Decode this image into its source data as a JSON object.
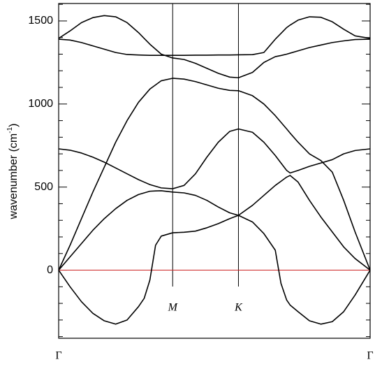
{
  "chart_data": {
    "type": "line",
    "ylabel": {
      "text": "wavenumber (cm",
      "superscript": "-1",
      "suffix": ")"
    },
    "x": [
      0,
      0.1,
      0.2,
      0.3,
      0.4,
      0.5,
      0.6,
      0.7,
      0.75,
      0.8,
      0.85,
      0.9,
      1.0,
      1.1,
      1.2,
      1.3,
      1.4,
      1.5,
      1.577,
      1.7,
      1.8,
      1.9,
      1.95,
      2.0,
      2.03,
      2.1,
      2.2,
      2.3,
      2.4,
      2.5,
      2.6,
      2.732
    ],
    "series": [
      {
        "color": "#000000",
        "values": [
          1395,
          1440,
          1490,
          1520,
          1532,
          1525,
          1490,
          1430,
          1395,
          1360,
          1330,
          1300,
          1277,
          1268,
          1245,
          1215,
          1185,
          1162,
          1158,
          1190,
          1250,
          1285,
          1292,
          1300,
          1306,
          1320,
          1340,
          1355,
          1370,
          1380,
          1388,
          1390
        ]
      },
      {
        "color": "#000000",
        "values": [
          1390,
          1385,
          1370,
          1350,
          1330,
          1310,
          1298,
          1295,
          1294,
          1293,
          1293,
          1293,
          1293,
          1293,
          1294,
          1294,
          1295,
          1295,
          1296,
          1297,
          1310,
          1390,
          1425,
          1460,
          1475,
          1505,
          1525,
          1522,
          1495,
          1450,
          1410,
          1395
        ]
      },
      {
        "color": "#000000",
        "values": [
          0,
          150,
          310,
          470,
          620,
          770,
          900,
          1010,
          1050,
          1090,
          1115,
          1140,
          1155,
          1150,
          1135,
          1115,
          1095,
          1082,
          1080,
          1050,
          1000,
          930,
          890,
          850,
          825,
          770,
          700,
          660,
          590,
          420,
          230,
          0
        ]
      },
      {
        "color": "#000000",
        "values": [
          730,
          722,
          705,
          680,
          650,
          615,
          580,
          545,
          530,
          515,
          505,
          495,
          490,
          510,
          580,
          680,
          770,
          835,
          850,
          830,
          770,
          690,
          645,
          600,
          585,
          600,
          625,
          645,
          665,
          700,
          720,
          730
        ]
      },
      {
        "color": "#000000",
        "values": [
          0,
          80,
          160,
          240,
          310,
          370,
          420,
          455,
          465,
          475,
          477,
          478,
          470,
          465,
          450,
          420,
          380,
          345,
          330,
          390,
          450,
          510,
          535,
          560,
          570,
          530,
          420,
          320,
          230,
          140,
          70,
          0
        ]
      },
      {
        "color": "#000000",
        "values": [
          0,
          -100,
          -190,
          -260,
          -305,
          -325,
          -300,
          -220,
          -170,
          -60,
          150,
          205,
          225,
          228,
          235,
          255,
          280,
          310,
          330,
          290,
          220,
          120,
          -80,
          -180,
          -210,
          -250,
          -305,
          -325,
          -310,
          -250,
          -150,
          0
        ]
      }
    ],
    "xlim": [
      0,
      2.732
    ],
    "xticks": [
      {
        "value": 0,
        "label": "Γ"
      },
      {
        "value": 1,
        "label": "M"
      },
      {
        "value": 1.577,
        "label": "K"
      },
      {
        "value": 2.732,
        "label": "Γ"
      }
    ],
    "ylim": [
      -410,
      1605
    ],
    "yticks": [
      0,
      500,
      1000,
      1500
    ],
    "minor_yticks": [
      -400,
      -300,
      -200,
      -100,
      100,
      200,
      300,
      400,
      600,
      700,
      800,
      900,
      1100,
      1200,
      1300,
      1400,
      1600
    ],
    "reference_line": {
      "value": 0,
      "color": "#cc2222"
    }
  }
}
